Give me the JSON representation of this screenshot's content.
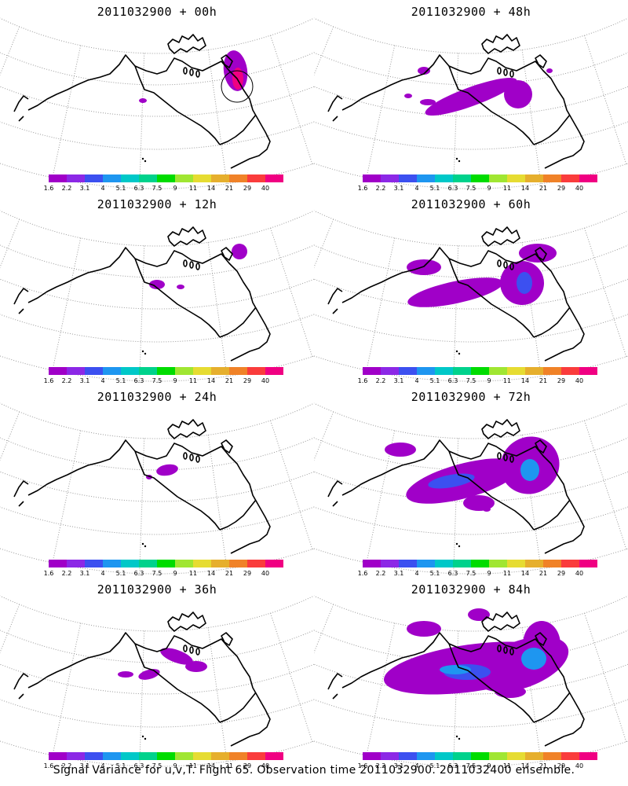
{
  "colorbar": {
    "ticks": [
      "1.6",
      "2.2",
      "3.1",
      "4",
      "5.1",
      "6.3",
      "7.5",
      "9",
      "11",
      "14",
      "21",
      "29",
      "40"
    ],
    "colors": [
      "#a000c8",
      "#8c28e6",
      "#3c50f0",
      "#1e96f0",
      "#00c8c8",
      "#00d28c",
      "#00dc00",
      "#a0e632",
      "#e6dc32",
      "#e6af2d",
      "#f08228",
      "#fa3c3c",
      "#f00082"
    ]
  },
  "panels": [
    {
      "title": "2011032900 + 00h",
      "hours": 0
    },
    {
      "title": "2011032900 + 48h",
      "hours": 48
    },
    {
      "title": "2011032900 + 12h",
      "hours": 12
    },
    {
      "title": "2011032900 + 60h",
      "hours": 60
    },
    {
      "title": "2011032900 + 24h",
      "hours": 24
    },
    {
      "title": "2011032900 + 72h",
      "hours": 72
    },
    {
      "title": "2011032900 + 36h",
      "hours": 36
    },
    {
      "title": "2011032900 + 84h",
      "hours": 84
    }
  ],
  "footer": "Signal Variance for u,v,T. Flight 65. Observation time 2011032900. 2011032400 ensemble."
}
